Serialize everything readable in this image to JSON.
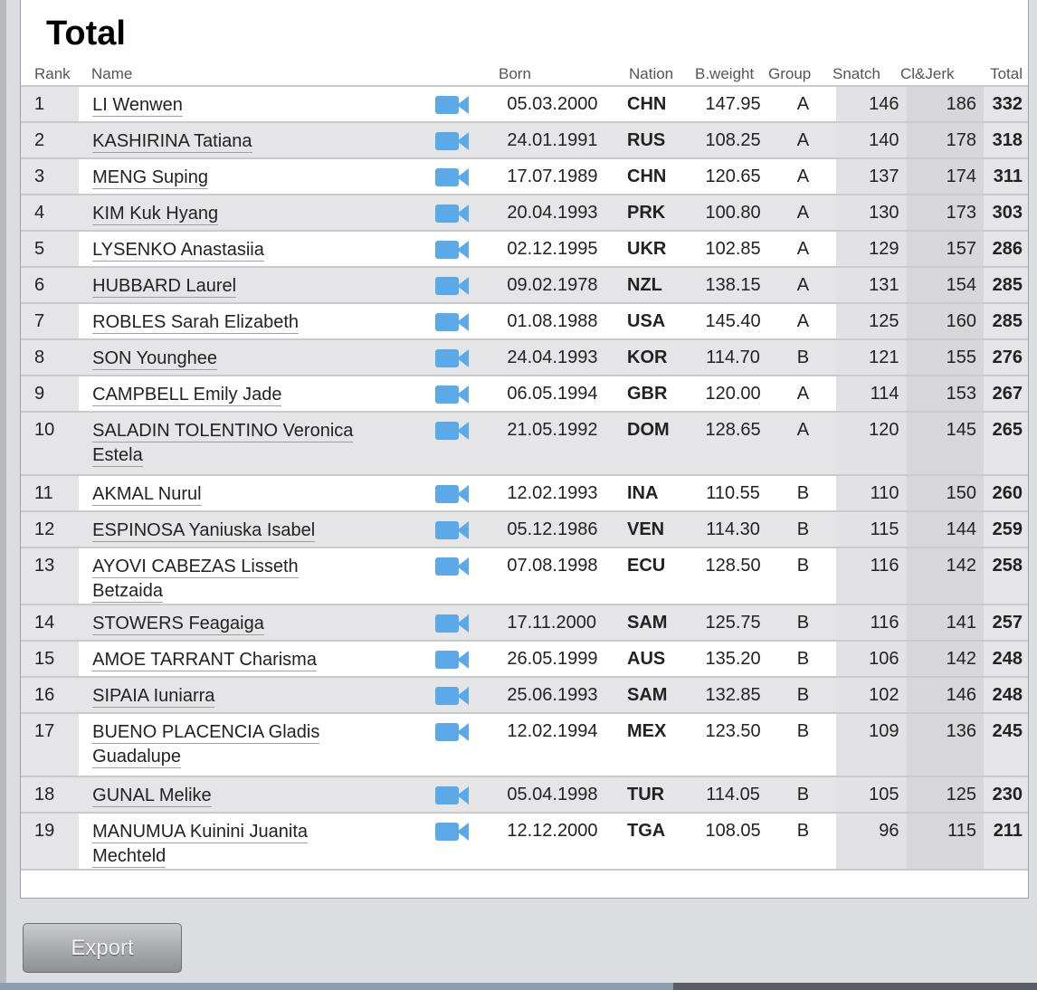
{
  "title": "Total",
  "columns": {
    "rank": "Rank",
    "name": "Name",
    "born": "Born",
    "nation": "Nation",
    "bweight": "B.weight",
    "group": "Group",
    "snatch": "Snatch",
    "cj": "Cl&Jerk",
    "total": "Total"
  },
  "rows": [
    {
      "rank": "1",
      "name": "LI Wenwen",
      "born": "05.03.2000",
      "nation": "CHN",
      "bweight": "147.95",
      "group": "A",
      "snatch": "146",
      "cj": "186",
      "total": "332"
    },
    {
      "rank": "2",
      "name": "KASHIRINA Tatiana",
      "born": "24.01.1991",
      "nation": "RUS",
      "bweight": "108.25",
      "group": "A",
      "snatch": "140",
      "cj": "178",
      "total": "318"
    },
    {
      "rank": "3",
      "name": "MENG Suping",
      "born": "17.07.1989",
      "nation": "CHN",
      "bweight": "120.65",
      "group": "A",
      "snatch": "137",
      "cj": "174",
      "total": "311"
    },
    {
      "rank": "4",
      "name": "KIM Kuk Hyang",
      "born": "20.04.1993",
      "nation": "PRK",
      "bweight": "100.80",
      "group": "A",
      "snatch": "130",
      "cj": "173",
      "total": "303"
    },
    {
      "rank": "5",
      "name": "LYSENKO Anastasiia",
      "born": "02.12.1995",
      "nation": "UKR",
      "bweight": "102.85",
      "group": "A",
      "snatch": "129",
      "cj": "157",
      "total": "286"
    },
    {
      "rank": "6",
      "name": "HUBBARD Laurel",
      "born": "09.02.1978",
      "nation": "NZL",
      "bweight": "138.15",
      "group": "A",
      "snatch": "131",
      "cj": "154",
      "total": "285"
    },
    {
      "rank": "7",
      "name": "ROBLES Sarah Elizabeth",
      "born": "01.08.1988",
      "nation": "USA",
      "bweight": "145.40",
      "group": "A",
      "snatch": "125",
      "cj": "160",
      "total": "285"
    },
    {
      "rank": "8",
      "name": "SON Younghee",
      "born": "24.04.1993",
      "nation": "KOR",
      "bweight": "114.70",
      "group": "B",
      "snatch": "121",
      "cj": "155",
      "total": "276"
    },
    {
      "rank": "9",
      "name": "CAMPBELL Emily Jade",
      "born": "06.05.1994",
      "nation": "GBR",
      "bweight": "120.00",
      "group": "A",
      "snatch": "114",
      "cj": "153",
      "total": "267"
    },
    {
      "rank": "10",
      "name": "SALADIN TOLENTINO Veronica Estela",
      "born": "21.05.1992",
      "nation": "DOM",
      "bweight": "128.65",
      "group": "A",
      "snatch": "120",
      "cj": "145",
      "total": "265"
    },
    {
      "rank": "11",
      "name": "AKMAL Nurul",
      "born": "12.02.1993",
      "nation": "INA",
      "bweight": "110.55",
      "group": "B",
      "snatch": "110",
      "cj": "150",
      "total": "260"
    },
    {
      "rank": "12",
      "name": "ESPINOSA Yaniuska Isabel",
      "born": "05.12.1986",
      "nation": "VEN",
      "bweight": "114.30",
      "group": "B",
      "snatch": "115",
      "cj": "144",
      "total": "259"
    },
    {
      "rank": "13",
      "name": "AYOVI CABEZAS Lisseth Betzaida",
      "born": "07.08.1998",
      "nation": "ECU",
      "bweight": "128.50",
      "group": "B",
      "snatch": "116",
      "cj": "142",
      "total": "258"
    },
    {
      "rank": "14",
      "name": "STOWERS Feagaiga",
      "born": "17.11.2000",
      "nation": "SAM",
      "bweight": "125.75",
      "group": "B",
      "snatch": "116",
      "cj": "141",
      "total": "257"
    },
    {
      "rank": "15",
      "name": "AMOE TARRANT Charisma",
      "born": "26.05.1999",
      "nation": "AUS",
      "bweight": "135.20",
      "group": "B",
      "snatch": "106",
      "cj": "142",
      "total": "248"
    },
    {
      "rank": "16",
      "name": "SIPAIA Iuniarra",
      "born": "25.06.1993",
      "nation": "SAM",
      "bweight": "132.85",
      "group": "B",
      "snatch": "102",
      "cj": "146",
      "total": "248"
    },
    {
      "rank": "17",
      "name": "BUENO PLACENCIA Gladis Guadalupe",
      "born": "12.02.1994",
      "nation": "MEX",
      "bweight": "123.50",
      "group": "B",
      "snatch": "109",
      "cj": "136",
      "total": "245"
    },
    {
      "rank": "18",
      "name": "GUNAL Melike",
      "born": "05.04.1998",
      "nation": "TUR",
      "bweight": "114.05",
      "group": "B",
      "snatch": "105",
      "cj": "125",
      "total": "230"
    },
    {
      "rank": "19",
      "name": "MANUMUA Kuinini Juanita Mechteld",
      "born": "12.12.2000",
      "nation": "TGA",
      "bweight": "108.05",
      "group": "B",
      "snatch": "96",
      "cj": "115",
      "total": "211"
    }
  ],
  "export_label": "Export",
  "icons": {
    "video": "video-camera-icon"
  },
  "colors": {
    "video_icon": "#5ca9ea"
  }
}
